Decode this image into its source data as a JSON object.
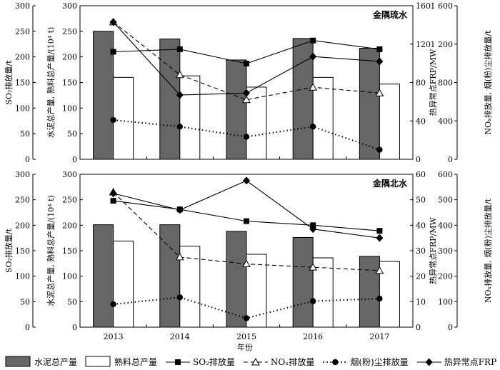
{
  "chart_data": [
    {
      "type": "bar",
      "panel_title": "金隅琉水",
      "categories": [
        "2013",
        "2014",
        "2015",
        "2016",
        "2017"
      ],
      "bars": [
        {
          "name": "水泥总产量",
          "color": "#666666",
          "values": [
            250,
            235,
            194,
            236,
            217
          ]
        },
        {
          "name": "熟料总产量",
          "color": "#ffffff",
          "values": [
            160,
            163,
            141,
            160,
            147
          ]
        }
      ],
      "lines": [
        {
          "name": "SO₂排放量",
          "axis": "left",
          "marker": "square",
          "dash": "solid",
          "values": [
            210,
            215,
            187,
            232,
            215
          ]
        },
        {
          "name": "NOₓ排放量",
          "axis": "right2",
          "marker": "triangle",
          "dash": "dashed",
          "values": [
            1430,
            880,
            620,
            750,
            690
          ]
        },
        {
          "name": "烟(粉)尘排放量",
          "axis": "right2",
          "marker": "circle",
          "dash": "dotted",
          "values": [
            410,
            340,
            235,
            340,
            100
          ]
        },
        {
          "name": "热异常点FRP",
          "axis": "right1",
          "marker": "diamond",
          "dash": "solid",
          "values": [
            143,
            67,
            69,
            107,
            102
          ]
        }
      ],
      "left_axis": {
        "ticks": [
          "0",
          "50",
          "100",
          "150",
          "200",
          "250",
          "300"
        ],
        "ylim": [
          0,
          300
        ]
      },
      "right1_axis": {
        "ticks": [
          "0",
          "40",
          "80",
          "120",
          "160"
        ],
        "ylim": [
          0,
          160
        ]
      },
      "right2_axis": {
        "ticks": [
          "0",
          "400",
          "800",
          "1 200",
          "1 600"
        ],
        "ylim": [
          0,
          1600
        ]
      },
      "labels": {
        "outer_left": "SO₂排放量/t",
        "inner_left": "水泥总产量, 熟料总产量/(10⁴ t)",
        "inner_right": "热异常点FRP/MW",
        "outer_right": "NOₓ排放量, 烟(粉)尘排放量/t"
      }
    },
    {
      "type": "bar",
      "panel_title": "金隅北水",
      "categories": [
        "2013",
        "2014",
        "2015",
        "2016",
        "2017"
      ],
      "bars": [
        {
          "name": "水泥总产量",
          "color": "#666666",
          "values": [
            201,
            201,
            188,
            176,
            139
          ]
        },
        {
          "name": "熟料总产量",
          "color": "#ffffff",
          "values": [
            169,
            159,
            143,
            136,
            129
          ]
        }
      ],
      "lines": [
        {
          "name": "SO₂排放量",
          "axis": "left",
          "marker": "square",
          "dash": "solid",
          "values": [
            248,
            231,
            208,
            200,
            189
          ]
        },
        {
          "name": "NOₓ排放量",
          "axis": "right2",
          "marker": "triangle",
          "dash": "dashed",
          "values": [
            530,
            275,
            248,
            235,
            222
          ]
        },
        {
          "name": "烟(粉)尘排放量",
          "axis": "right2",
          "marker": "circle",
          "dash": "dotted",
          "values": [
            90,
            117,
            35,
            102,
            112
          ]
        },
        {
          "name": "热异常点FRP",
          "axis": "right1",
          "marker": "diamond",
          "dash": "solid",
          "values": [
            52.5,
            46,
            57.5,
            38.5,
            35
          ]
        }
      ],
      "left_axis": {
        "ticks": [
          "0",
          "50",
          "100",
          "150",
          "200",
          "250",
          "300"
        ],
        "ylim": [
          0,
          300
        ]
      },
      "right1_axis": {
        "ticks": [
          "0",
          "10",
          "20",
          "30",
          "40",
          "50",
          "60"
        ],
        "ylim": [
          0,
          60
        ]
      },
      "right2_axis": {
        "ticks": [
          "0",
          "100",
          "200",
          "300",
          "400",
          "500",
          "600"
        ],
        "ylim": [
          0,
          600
        ]
      },
      "labels": {
        "outer_left": "SO₂排放量/t",
        "inner_left": "水泥总产量, 熟料总产量/(10⁴ t)",
        "inner_right": "热异常点FRP/MW",
        "outer_right": "NOₓ排放量, 烟(粉)尘排放量/t"
      }
    }
  ],
  "xlabel": "年份",
  "legend": [
    {
      "label": "水泥总产量",
      "kind": "bar",
      "fill": "#666666"
    },
    {
      "label": "熟料总产量",
      "kind": "bar",
      "fill": "#ffffff"
    },
    {
      "label": "SO₂排放量",
      "kind": "line",
      "marker": "square",
      "dash": "solid"
    },
    {
      "label": "NOₓ排放量",
      "kind": "line",
      "marker": "triangle",
      "dash": "dashed"
    },
    {
      "label": "烟(粉)尘排放量",
      "kind": "line",
      "marker": "circle",
      "dash": "dotted"
    },
    {
      "label": "热异常点FRP",
      "kind": "line",
      "marker": "diamond",
      "dash": "solid"
    }
  ]
}
